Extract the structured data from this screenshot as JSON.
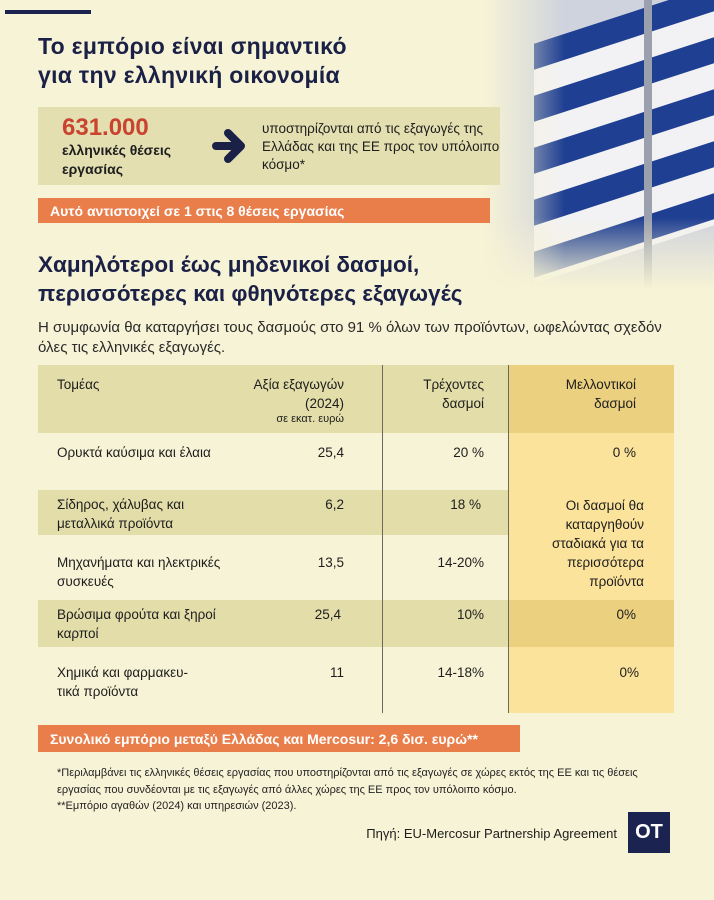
{
  "header": {
    "title_line1": "Το εμπόριο είναι σημαντικό",
    "title_line2": "για την ελληνική οικονομία"
  },
  "highlight": {
    "number": "631.000",
    "number_label": "ελληνικές θέσεις εργασίας",
    "icon": "arrow-right-icon",
    "description": "υποστηρίζονται από τις εξαγωγές της Ελλάδας και της ΕΕ προς τον υπόλοιπο κόσμο*"
  },
  "banner1": "Αυτό αντιστοιχεί σε 1 στις 8 θέσεις εργασίας",
  "section": {
    "title_line1": "Χαμηλότεροι έως μηδενικοί δασμοί,",
    "title_line2": "περισσότερες και φθηνότερες εξαγωγές",
    "intro": "Η συμφωνία θα καταργήσει τους δασμούς στο 91 % όλων των προϊόντων, ωφελώντας σχεδόν όλες τις ελληνικές εξαγωγές."
  },
  "table": {
    "headers": {
      "sector": "Τομέας",
      "exports": "Αξία εξαγωγών (2024)",
      "exports_unit": "σε εκατ. ευρώ",
      "current": "Τρέχοντες δασμοί",
      "future": "Μελλοντικοί δασμοί"
    },
    "rows": [
      {
        "sector": "Ορυκτά καύσιμα και έλαια",
        "exports": "25,4",
        "current": "20 %",
        "future": "0 %"
      },
      {
        "sector": "Σίδηρος, χάλυβας και μεταλλικά προϊόντα",
        "exports": "6,2",
        "current": "18 %",
        "future": ""
      },
      {
        "sector": "Μηχανήματα και ηλεκτρικές συσκευές",
        "exports": "13,5",
        "current": "14-20%",
        "future": ""
      },
      {
        "sector": "Βρώσιμα φρούτα και ξηροί καρποί",
        "exports": "25,4",
        "current": "10%",
        "future": "0%"
      },
      {
        "sector": "Χημικά και φαρμακευ-τικά προϊόντα",
        "exports": "11",
        "current": "14-18%",
        "future": "0%"
      }
    ],
    "merged_future": "Οι δασμοί θα καταργηθούν σταδιακά για τα περισσότερα προϊόντα"
  },
  "banner2": "Συνολικό εμπόριο μεταξύ Ελλάδας και Mercosur: 2,6 δισ. ευρώ**",
  "footnotes": {
    "note1": "*Περιλαμβάνει τις ελληνικές θέσεις εργασίας που υποστηρίζονται από τις εξαγωγές σε χώρες εκτός της ΕΕ και τις θέσεις εργασίας που συνδέονται με τις εξαγωγές από άλλες χώρες της ΕΕ προς τον υπόλοιπο κόσμο.",
    "note2": "**Εμπόριο αγαθών (2024) και υπηρεσιών (2023)."
  },
  "source": "Πηγή: EU-Mercosur Partnership Agreement",
  "logo": "OT",
  "colors": {
    "navy": "#1b2450",
    "orange": "#e97e4a",
    "red": "#c9432f",
    "background": "#f7f3d6",
    "future_column": "#fbe39b"
  }
}
